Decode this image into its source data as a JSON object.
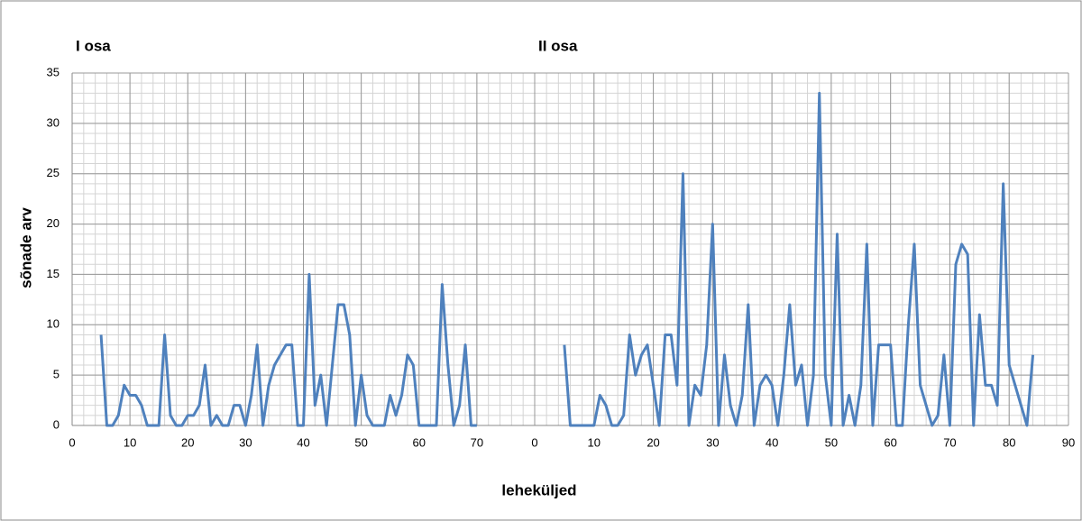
{
  "chart_data": [
    {
      "type": "line",
      "title": "I osa",
      "ylabel": "sõnade arv",
      "xlabel": "leheküljed",
      "color": "#4f81bd",
      "grid": true,
      "xlim": [
        0,
        80
      ],
      "xticks": [
        0,
        10,
        20,
        30,
        40,
        50,
        60,
        70
      ],
      "ylim": [
        0,
        35
      ],
      "yticks": [
        0,
        5,
        10,
        15,
        20,
        25,
        30,
        35
      ],
      "x": [
        5,
        6,
        7,
        8,
        9,
        10,
        11,
        12,
        13,
        14,
        15,
        16,
        17,
        18,
        19,
        20,
        21,
        22,
        23,
        24,
        25,
        26,
        27,
        28,
        29,
        30,
        31,
        32,
        33,
        34,
        35,
        36,
        37,
        38,
        39,
        40,
        41,
        42,
        43,
        44,
        45,
        46,
        47,
        48,
        49,
        50,
        51,
        52,
        53,
        54,
        55,
        56,
        57,
        58,
        59,
        60,
        61,
        62,
        63,
        64,
        65,
        66,
        67,
        68,
        69,
        70
      ],
      "values": [
        9,
        0,
        0,
        1,
        4,
        3,
        3,
        2,
        0,
        0,
        0,
        9,
        1,
        0,
        0,
        1,
        1,
        2,
        6,
        0,
        1,
        0,
        0,
        2,
        2,
        0,
        3,
        8,
        0,
        4,
        6,
        7,
        8,
        8,
        0,
        0,
        15,
        2,
        5,
        0,
        6,
        12,
        12,
        9,
        0,
        5,
        1,
        0,
        0,
        0,
        3,
        1,
        3,
        7,
        6,
        0,
        0,
        0,
        0,
        14,
        6,
        0,
        2,
        8,
        0,
        0
      ]
    },
    {
      "type": "line",
      "title": "II osa",
      "color": "#4f81bd",
      "grid": true,
      "xlim": [
        0,
        90
      ],
      "xticks": [
        0,
        10,
        20,
        30,
        40,
        50,
        60,
        70,
        80,
        90
      ],
      "ylim": [
        0,
        35
      ],
      "x": [
        5,
        6,
        7,
        8,
        9,
        10,
        11,
        12,
        13,
        14,
        15,
        16,
        17,
        18,
        19,
        20,
        21,
        22,
        23,
        24,
        25,
        26,
        27,
        28,
        29,
        30,
        31,
        32,
        33,
        34,
        35,
        36,
        37,
        38,
        39,
        40,
        41,
        42,
        43,
        44,
        45,
        46,
        47,
        48,
        49,
        50,
        51,
        52,
        53,
        54,
        55,
        56,
        57,
        58,
        59,
        60,
        61,
        62,
        63,
        64,
        65,
        66,
        67,
        68,
        69,
        70,
        71,
        72,
        73,
        74,
        75,
        76,
        77,
        78,
        79,
        80,
        81,
        82,
        83,
        84
      ],
      "values": [
        8,
        0,
        0,
        0,
        0,
        0,
        3,
        2,
        0,
        0,
        1,
        9,
        5,
        7,
        8,
        4,
        0,
        9,
        9,
        4,
        25,
        0,
        4,
        3,
        8,
        20,
        0,
        7,
        2,
        0,
        3,
        12,
        0,
        4,
        5,
        4,
        0,
        5,
        12,
        4,
        6,
        0,
        5,
        33,
        5,
        0,
        19,
        0,
        3,
        0,
        4,
        18,
        0,
        8,
        8,
        8,
        0,
        0,
        10,
        18,
        4,
        2,
        0,
        1,
        7,
        0,
        16,
        18,
        17,
        0,
        11,
        4,
        4,
        2,
        24,
        6,
        4,
        2,
        0,
        7
      ]
    }
  ]
}
